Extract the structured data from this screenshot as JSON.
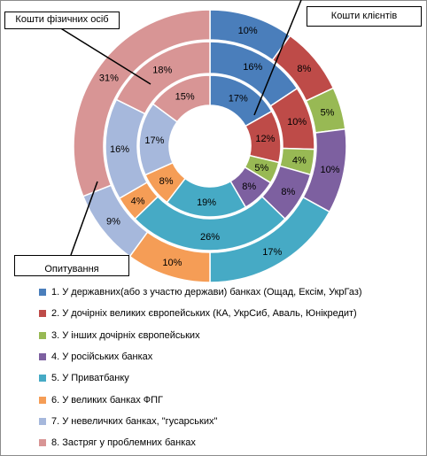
{
  "chart_data": {
    "type": "donut",
    "categories": [
      "1. У державних(або  з участю держави) банках (Ощад, Ексім, УкрГаз)",
      "2. У дочірніх великих європейських (КА, УкрСиб, Аваль, Юнікредит)",
      "3. У інших дочірніх європейських",
      "4. У російських банках",
      "5. У Приватбанку",
      "6. У великих банках  ФПГ",
      "7. У невеличких банках, \"гусарських\"",
      "8. Застряг у проблемних банках"
    ],
    "colors": [
      "#4a7ebb",
      "#be4b48",
      "#98b954",
      "#7d60a0",
      "#46aac5",
      "#f59d56",
      "#a6b8dc",
      "#d89595"
    ],
    "series": [
      {
        "name": "Кошти фізичних осіб",
        "values": [
          10,
          8,
          5,
          10,
          17,
          10,
          9,
          31
        ],
        "labels": [
          "10%",
          "8%",
          "5%",
          "10%",
          "17%",
          "10%",
          "9%",
          "31%"
        ]
      },
      {
        "name": "Опитування",
        "values": [
          16,
          10,
          4,
          8,
          26,
          4,
          16,
          18
        ],
        "labels": [
          "16%",
          "10%",
          "4%",
          "8%",
          "26%",
          "4%",
          "16%",
          "18%"
        ]
      },
      {
        "name": "Кошти клієнтів",
        "values": [
          17,
          12,
          5,
          8,
          19,
          8,
          17,
          15
        ],
        "labels": [
          "17%",
          "12%",
          "5%",
          "8%",
          "19%",
          "8%",
          "17%",
          "15%"
        ]
      }
    ]
  },
  "callouts": {
    "outer": "Кошти фізичних осіб",
    "inner": "Кошти клієнтів",
    "middle": "Опитування"
  }
}
